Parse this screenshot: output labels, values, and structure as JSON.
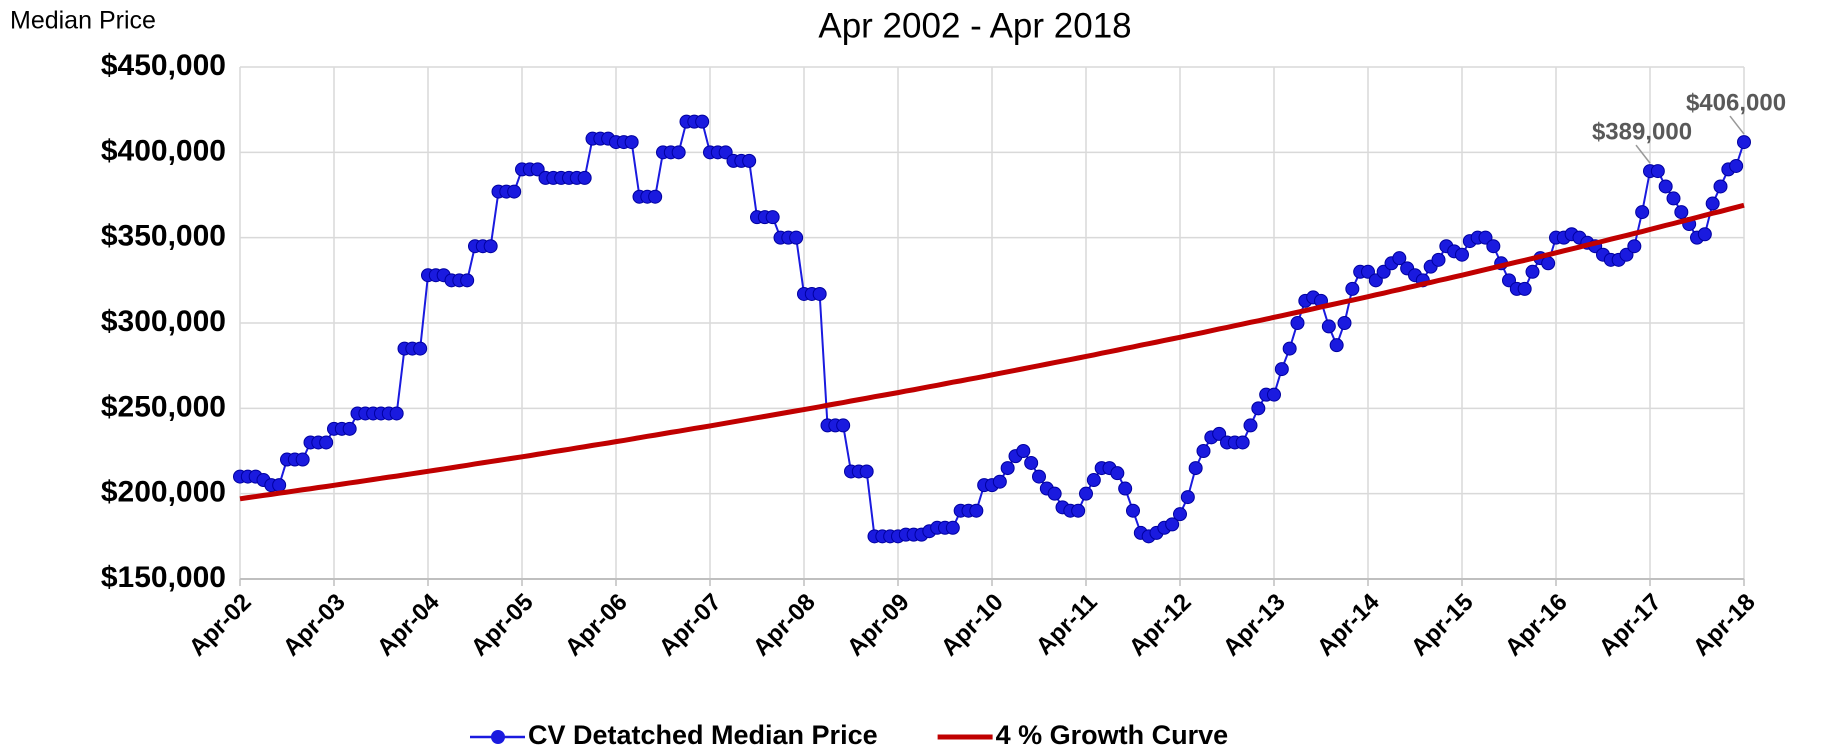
{
  "chart_data": {
    "type": "line",
    "subtitle": "Apr 2002 - Apr 2018",
    "y_label": "Median Price",
    "categories": [
      "Apr-02",
      null,
      null,
      null,
      null,
      null,
      null,
      null,
      null,
      null,
      null,
      null,
      "Apr-03",
      null,
      null,
      null,
      null,
      null,
      null,
      null,
      null,
      null,
      null,
      null,
      "Apr-04",
      null,
      null,
      null,
      null,
      null,
      null,
      null,
      null,
      null,
      null,
      null,
      "Apr-05",
      null,
      null,
      null,
      null,
      null,
      null,
      null,
      null,
      null,
      null,
      null,
      "Apr-06",
      null,
      null,
      null,
      null,
      null,
      null,
      null,
      null,
      null,
      null,
      null,
      "Apr-07",
      null,
      null,
      null,
      null,
      null,
      null,
      null,
      null,
      null,
      null,
      null,
      "Apr-08",
      null,
      null,
      null,
      null,
      null,
      null,
      null,
      null,
      null,
      null,
      null,
      "Apr-09",
      null,
      null,
      null,
      null,
      null,
      null,
      null,
      null,
      null,
      null,
      null,
      "Apr-10",
      null,
      null,
      null,
      null,
      null,
      null,
      null,
      null,
      null,
      null,
      null,
      "Apr-11",
      null,
      null,
      null,
      null,
      null,
      null,
      null,
      null,
      null,
      null,
      null,
      "Apr-12",
      null,
      null,
      null,
      null,
      null,
      null,
      null,
      null,
      null,
      null,
      null,
      "Apr-13",
      null,
      null,
      null,
      null,
      null,
      null,
      null,
      null,
      null,
      null,
      null,
      "Apr-14",
      null,
      null,
      null,
      null,
      null,
      null,
      null,
      null,
      null,
      null,
      null,
      "Apr-15",
      null,
      null,
      null,
      null,
      null,
      null,
      null,
      null,
      null,
      null,
      null,
      "Apr-16",
      null,
      null,
      null,
      null,
      null,
      null,
      null,
      null,
      null,
      null,
      null,
      "Apr-17",
      null,
      null,
      null,
      null,
      null,
      null,
      null,
      null,
      null,
      null,
      null,
      "Apr-18"
    ],
    "series": [
      {
        "name": "CV Detatched Median Price",
        "color": "#1a1adf",
        "markers": true,
        "values": [
          210000,
          210000,
          210000,
          208000,
          205000,
          205000,
          220000,
          220000,
          220000,
          230000,
          230000,
          230000,
          238000,
          238000,
          238000,
          247000,
          247000,
          247000,
          247000,
          247000,
          247000,
          285000,
          285000,
          285000,
          328000,
          328000,
          328000,
          325000,
          325000,
          325000,
          345000,
          345000,
          345000,
          377000,
          377000,
          377000,
          390000,
          390000,
          390000,
          385000,
          385000,
          385000,
          385000,
          385000,
          385000,
          408000,
          408000,
          408000,
          406000,
          406000,
          406000,
          374000,
          374000,
          374000,
          400000,
          400000,
          400000,
          418000,
          418000,
          418000,
          400000,
          400000,
          400000,
          395000,
          395000,
          395000,
          362000,
          362000,
          362000,
          350000,
          350000,
          350000,
          317000,
          317000,
          317000,
          240000,
          240000,
          240000,
          213000,
          213000,
          213000,
          175000,
          175000,
          175000,
          175000,
          176000,
          176000,
          176000,
          178000,
          180000,
          180000,
          180000,
          190000,
          190000,
          190000,
          205000,
          205000,
          207000,
          215000,
          222000,
          225000,
          218000,
          210000,
          203000,
          200000,
          192000,
          190000,
          190000,
          200000,
          208000,
          215000,
          215000,
          212000,
          203000,
          190000,
          177000,
          175000,
          177000,
          180000,
          182000,
          188000,
          198000,
          215000,
          225000,
          233000,
          235000,
          230000,
          230000,
          230000,
          240000,
          250000,
          258000,
          258000,
          273000,
          285000,
          300000,
          313000,
          315000,
          313000,
          298000,
          287000,
          300000,
          320000,
          330000,
          330000,
          325000,
          330000,
          335000,
          338000,
          332000,
          328000,
          325000,
          333000,
          337000,
          345000,
          342000,
          340000,
          348000,
          350000,
          350000,
          345000,
          335000,
          325000,
          320000,
          320000,
          330000,
          338000,
          335000,
          350000,
          350000,
          352000,
          350000,
          347000,
          345000,
          340000,
          337000,
          337000,
          340000,
          345000,
          365000,
          389000,
          389000,
          380000,
          373000,
          365000,
          358000,
          350000,
          352000,
          370000,
          380000,
          390000,
          392000,
          406000
        ],
        "value_labels": [
          null,
          null,
          null,
          null,
          null,
          null,
          null,
          null,
          null,
          null,
          null,
          null,
          null,
          null,
          null,
          null,
          null,
          null,
          null,
          null,
          null,
          null,
          null,
          null,
          null,
          null,
          null,
          null,
          null,
          null,
          null,
          null,
          null,
          null,
          null,
          null,
          null,
          null,
          null,
          null,
          null,
          null,
          null,
          null,
          null,
          null,
          null,
          null,
          null,
          null,
          null,
          null,
          null,
          null,
          null,
          null,
          null,
          null,
          null,
          null,
          null,
          null,
          null,
          null,
          null,
          null,
          null,
          null,
          null,
          null,
          null,
          null,
          null,
          null,
          null,
          null,
          null,
          null,
          null,
          null,
          null,
          null,
          null,
          null,
          null,
          null,
          null,
          null,
          null,
          null,
          null,
          null,
          null,
          null,
          null,
          null,
          null,
          null,
          null,
          null,
          null,
          null,
          null,
          null,
          null,
          null,
          null,
          null,
          null,
          null,
          null,
          null,
          null,
          null,
          null,
          null,
          null,
          null,
          null,
          null,
          null,
          null,
          null,
          null,
          null,
          null,
          null,
          null,
          null,
          null,
          null,
          null,
          null,
          null,
          null,
          null,
          null,
          null,
          null,
          null,
          null,
          null,
          null,
          null,
          null,
          null,
          null,
          null,
          null,
          null,
          null,
          null,
          null,
          null,
          null,
          null,
          null,
          null,
          null,
          null,
          null,
          null,
          null,
          null,
          null,
          null,
          null,
          null,
          null,
          null,
          null,
          null,
          null,
          null,
          null,
          null,
          null,
          null,
          null,
          null,
          "$389,000",
          null,
          null,
          null,
          null,
          null,
          null,
          null,
          null,
          null,
          null,
          null,
          "$406,000"
        ]
      },
      {
        "name": "4 % Growth Curve",
        "color": "#c00000",
        "markers": false,
        "values": [
          197000,
          197700,
          198300,
          199000,
          199600,
          200300,
          200900,
          201600,
          202300,
          202900,
          203600,
          204200,
          204900,
          205600,
          206300,
          206900,
          207600,
          208300,
          209000,
          209700,
          210300,
          211000,
          211700,
          212400,
          213100,
          213800,
          214500,
          215200,
          215900,
          216600,
          217400,
          218100,
          218800,
          219500,
          220200,
          220900,
          221600,
          222300,
          223100,
          223800,
          224600,
          225300,
          226000,
          226800,
          227500,
          228300,
          229000,
          229700,
          230500,
          231200,
          232000,
          232800,
          233600,
          234300,
          235100,
          235900,
          236600,
          237400,
          238200,
          238900,
          239700,
          240500,
          241300,
          242100,
          242900,
          243700,
          244500,
          245300,
          246100,
          246900,
          247700,
          248500,
          249300,
          250100,
          250900,
          251800,
          252600,
          253400,
          254300,
          255100,
          255900,
          256800,
          257600,
          258400,
          259200,
          260100,
          260900,
          261800,
          262700,
          263500,
          264400,
          265300,
          266100,
          267000,
          267800,
          268700,
          269600,
          270500,
          271400,
          272300,
          273200,
          274100,
          275000,
          275900,
          276800,
          277700,
          278600,
          279500,
          280400,
          281300,
          282300,
          283200,
          284100,
          285100,
          286000,
          287000,
          287900,
          288800,
          289800,
          290700,
          291600,
          292600,
          293500,
          294500,
          295500,
          296500,
          297400,
          298400,
          299400,
          300400,
          301300,
          302300,
          303300,
          304300,
          305300,
          306300,
          307300,
          308300,
          309400,
          310400,
          311400,
          312400,
          313400,
          314400,
          315400,
          316500,
          317500,
          318600,
          319600,
          320700,
          321700,
          322800,
          323800,
          324900,
          325900,
          327000,
          328000,
          329100,
          330200,
          331300,
          332400,
          333500,
          334600,
          335700,
          336700,
          337800,
          338900,
          340000,
          341100,
          342300,
          343400,
          344500,
          345700,
          346800,
          347900,
          349100,
          350200,
          351300,
          352500,
          353600,
          354800,
          356000,
          357200,
          358300,
          359500,
          360700,
          361900,
          363100,
          364300,
          365400,
          366600,
          367800,
          369000
        ]
      }
    ],
    "ylim": [
      150000,
      450000
    ],
    "yticks": [
      {
        "value": 150000,
        "label": "$150,000"
      },
      {
        "value": 200000,
        "label": "$200,000"
      },
      {
        "value": 250000,
        "label": "$250,000"
      },
      {
        "value": 300000,
        "label": "$300,000"
      },
      {
        "value": 350000,
        "label": "$350,000"
      },
      {
        "value": 400000,
        "label": "$400,000"
      },
      {
        "value": 450000,
        "label": "$450,000"
      }
    ],
    "grid": true,
    "legend": "bottom"
  }
}
